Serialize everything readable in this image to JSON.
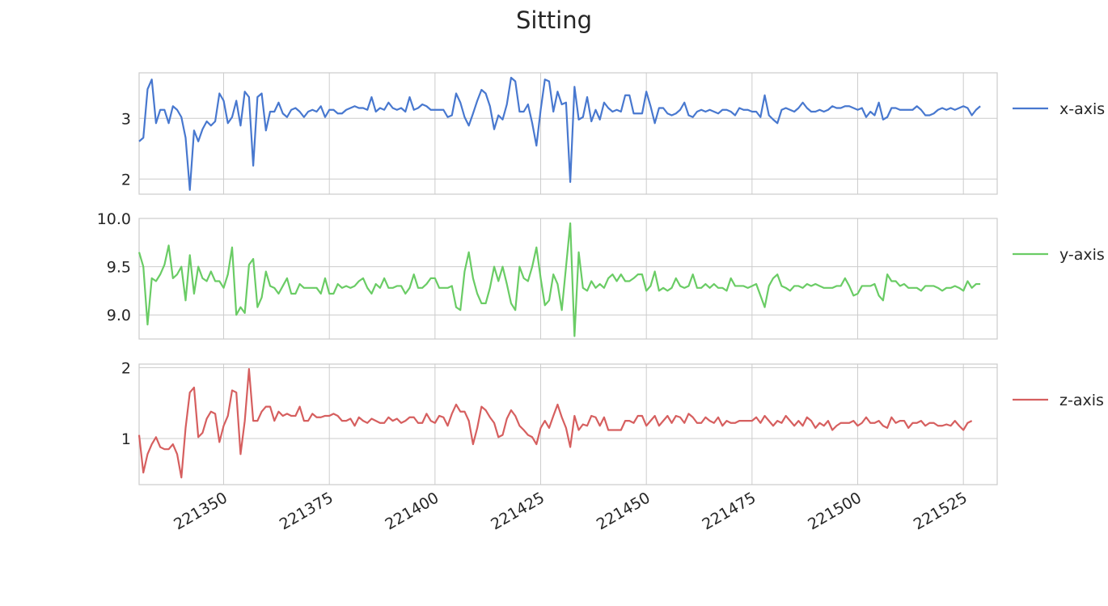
{
  "chart_data": {
    "type": "line",
    "title": "Sitting",
    "x_start": 221330,
    "x_step": 1,
    "xlim": [
      221330,
      221533
    ],
    "x_ticks": [
      221350,
      221375,
      221400,
      221425,
      221450,
      221475,
      221500,
      221525
    ],
    "grid": true,
    "legend_position": "right",
    "subplots": [
      {
        "series_name": "x-axis",
        "color": "#4878cf",
        "ylim": [
          1.75,
          3.75
        ],
        "y_ticks": [
          2,
          3
        ],
        "y_tick_labels": [
          "2",
          "3"
        ],
        "values": [
          2.62,
          2.68,
          3.48,
          3.64,
          2.92,
          3.14,
          3.14,
          2.92,
          3.2,
          3.14,
          3.02,
          2.68,
          1.82,
          2.8,
          2.62,
          2.82,
          2.95,
          2.88,
          2.95,
          3.41,
          3.29,
          2.92,
          3.02,
          3.29,
          2.88,
          3.44,
          3.35,
          2.22,
          3.35,
          3.41,
          2.8,
          3.11,
          3.11,
          3.26,
          3.08,
          3.02,
          3.14,
          3.17,
          3.11,
          3.02,
          3.11,
          3.14,
          3.11,
          3.2,
          3.02,
          3.14,
          3.14,
          3.08,
          3.08,
          3.14,
          3.17,
          3.2,
          3.17,
          3.17,
          3.14,
          3.35,
          3.11,
          3.17,
          3.14,
          3.26,
          3.17,
          3.14,
          3.17,
          3.11,
          3.35,
          3.14,
          3.17,
          3.23,
          3.2,
          3.14,
          3.14,
          3.14,
          3.14,
          3.02,
          3.05,
          3.41,
          3.26,
          3.02,
          2.88,
          3.08,
          3.29,
          3.47,
          3.41,
          3.2,
          2.82,
          3.05,
          2.98,
          3.23,
          3.67,
          3.61,
          3.11,
          3.11,
          3.23,
          2.92,
          2.55,
          3.14,
          3.64,
          3.61,
          3.11,
          3.44,
          3.23,
          3.26,
          1.95,
          3.52,
          2.98,
          3.02,
          3.35,
          2.95,
          3.14,
          2.98,
          3.26,
          3.17,
          3.11,
          3.14,
          3.11,
          3.38,
          3.38,
          3.08,
          3.08,
          3.08,
          3.44,
          3.2,
          2.92,
          3.17,
          3.17,
          3.08,
          3.05,
          3.08,
          3.14,
          3.26,
          3.05,
          3.02,
          3.11,
          3.14,
          3.11,
          3.14,
          3.11,
          3.08,
          3.14,
          3.14,
          3.11,
          3.05,
          3.17,
          3.14,
          3.14,
          3.11,
          3.11,
          3.02,
          3.38,
          3.05,
          2.98,
          2.92,
          3.14,
          3.17,
          3.14,
          3.11,
          3.17,
          3.26,
          3.17,
          3.11,
          3.11,
          3.14,
          3.11,
          3.14,
          3.2,
          3.17,
          3.17,
          3.2,
          3.2,
          3.17,
          3.14,
          3.17,
          3.02,
          3.11,
          3.05,
          3.26,
          2.98,
          3.02,
          3.17,
          3.17,
          3.14,
          3.14,
          3.14,
          3.14,
          3.2,
          3.14,
          3.05,
          3.05,
          3.08,
          3.14,
          3.17,
          3.14,
          3.17,
          3.14,
          3.17,
          3.2,
          3.17,
          3.05,
          3.14,
          3.2
        ]
      },
      {
        "series_name": "y-axis",
        "color": "#6acc65",
        "ylim": [
          8.75,
          10.0
        ],
        "y_ticks": [
          9.0,
          9.5,
          10.0
        ],
        "y_tick_labels": [
          "9.0",
          "9.5",
          "10.0"
        ],
        "values": [
          9.65,
          9.5,
          8.9,
          9.38,
          9.35,
          9.42,
          9.52,
          9.72,
          9.38,
          9.42,
          9.5,
          9.15,
          9.62,
          9.22,
          9.5,
          9.38,
          9.35,
          9.45,
          9.35,
          9.35,
          9.28,
          9.42,
          9.7,
          9.0,
          9.08,
          9.02,
          9.52,
          9.58,
          9.08,
          9.18,
          9.45,
          9.3,
          9.28,
          9.22,
          9.3,
          9.38,
          9.22,
          9.22,
          9.32,
          9.28,
          9.28,
          9.28,
          9.28,
          9.22,
          9.38,
          9.22,
          9.22,
          9.32,
          9.28,
          9.3,
          9.28,
          9.3,
          9.35,
          9.38,
          9.28,
          9.22,
          9.32,
          9.28,
          9.38,
          9.28,
          9.28,
          9.3,
          9.3,
          9.22,
          9.28,
          9.42,
          9.28,
          9.28,
          9.32,
          9.38,
          9.38,
          9.28,
          9.28,
          9.28,
          9.3,
          9.08,
          9.05,
          9.45,
          9.65,
          9.38,
          9.22,
          9.12,
          9.12,
          9.28,
          9.5,
          9.35,
          9.5,
          9.32,
          9.12,
          9.05,
          9.5,
          9.38,
          9.35,
          9.5,
          9.7,
          9.38,
          9.1,
          9.15,
          9.42,
          9.32,
          9.05,
          9.5,
          9.95,
          8.78,
          9.65,
          9.28,
          9.25,
          9.35,
          9.28,
          9.32,
          9.28,
          9.38,
          9.42,
          9.35,
          9.42,
          9.35,
          9.35,
          9.38,
          9.42,
          9.42,
          9.25,
          9.3,
          9.45,
          9.25,
          9.28,
          9.25,
          9.28,
          9.38,
          9.3,
          9.28,
          9.3,
          9.42,
          9.28,
          9.28,
          9.32,
          9.28,
          9.32,
          9.28,
          9.28,
          9.25,
          9.38,
          9.3,
          9.3,
          9.3,
          9.28,
          9.3,
          9.32,
          9.2,
          9.08,
          9.3,
          9.38,
          9.42,
          9.3,
          9.28,
          9.25,
          9.3,
          9.3,
          9.28,
          9.32,
          9.3,
          9.32,
          9.3,
          9.28,
          9.28,
          9.28,
          9.3,
          9.3,
          9.38,
          9.3,
          9.2,
          9.22,
          9.3,
          9.3,
          9.3,
          9.32,
          9.2,
          9.15,
          9.42,
          9.35,
          9.35,
          9.3,
          9.32,
          9.28,
          9.28,
          9.28,
          9.25,
          9.3,
          9.3,
          9.3,
          9.28,
          9.25,
          9.28,
          9.28,
          9.3,
          9.28,
          9.25,
          9.35,
          9.28,
          9.32,
          9.32
        ]
      },
      {
        "series_name": "z-axis",
        "color": "#d65f5f",
        "ylim": [
          0.35,
          2.05
        ],
        "y_ticks": [
          1,
          2
        ],
        "y_tick_labels": [
          "1",
          "2"
        ],
        "values": [
          1.05,
          0.52,
          0.78,
          0.92,
          1.02,
          0.88,
          0.85,
          0.85,
          0.92,
          0.78,
          0.45,
          1.15,
          1.65,
          1.72,
          1.02,
          1.08,
          1.28,
          1.38,
          1.35,
          0.95,
          1.18,
          1.32,
          1.68,
          1.65,
          0.78,
          1.25,
          1.98,
          1.25,
          1.25,
          1.38,
          1.45,
          1.45,
          1.25,
          1.38,
          1.32,
          1.35,
          1.32,
          1.32,
          1.45,
          1.25,
          1.25,
          1.35,
          1.3,
          1.3,
          1.32,
          1.32,
          1.35,
          1.32,
          1.25,
          1.25,
          1.28,
          1.18,
          1.3,
          1.25,
          1.22,
          1.28,
          1.25,
          1.22,
          1.22,
          1.3,
          1.25,
          1.28,
          1.22,
          1.25,
          1.3,
          1.3,
          1.22,
          1.22,
          1.35,
          1.25,
          1.22,
          1.32,
          1.3,
          1.18,
          1.35,
          1.48,
          1.38,
          1.38,
          1.25,
          0.92,
          1.15,
          1.45,
          1.4,
          1.3,
          1.22,
          1.02,
          1.05,
          1.28,
          1.4,
          1.32,
          1.18,
          1.12,
          1.05,
          1.02,
          0.92,
          1.15,
          1.25,
          1.15,
          1.32,
          1.48,
          1.3,
          1.15,
          0.88,
          1.32,
          1.12,
          1.2,
          1.18,
          1.32,
          1.3,
          1.18,
          1.3,
          1.12,
          1.12,
          1.12,
          1.12,
          1.25,
          1.25,
          1.22,
          1.32,
          1.32,
          1.18,
          1.25,
          1.32,
          1.18,
          1.25,
          1.32,
          1.22,
          1.32,
          1.3,
          1.22,
          1.35,
          1.3,
          1.22,
          1.22,
          1.3,
          1.25,
          1.22,
          1.3,
          1.18,
          1.25,
          1.22,
          1.22,
          1.25,
          1.25,
          1.25,
          1.25,
          1.3,
          1.22,
          1.32,
          1.25,
          1.18,
          1.25,
          1.22,
          1.32,
          1.25,
          1.18,
          1.25,
          1.18,
          1.3,
          1.25,
          1.15,
          1.22,
          1.18,
          1.25,
          1.12,
          1.18,
          1.22,
          1.22,
          1.22,
          1.25,
          1.18,
          1.22,
          1.3,
          1.22,
          1.22,
          1.25,
          1.18,
          1.15,
          1.3,
          1.22,
          1.25,
          1.25,
          1.15,
          1.22,
          1.22,
          1.25,
          1.18,
          1.22,
          1.22,
          1.18,
          1.18,
          1.2,
          1.18,
          1.25,
          1.18,
          1.12,
          1.22,
          1.25
        ]
      }
    ]
  }
}
